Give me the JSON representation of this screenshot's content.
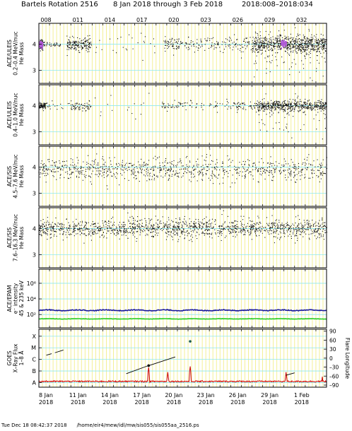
{
  "header": {
    "rotation": "Bartels Rotation 2516",
    "date_range": "8 Jan 2018 through 3 Feb 2018",
    "doy_range": "2018:008–2018:034"
  },
  "footer": {
    "timestamp": "Tue Dec 18 08:42:37 2018",
    "path": "/home/eir4/mew/idl/mw/sis055/sis055aa_2516.ps"
  },
  "chart_data": {
    "type": "scatter",
    "x_range_days": [
      8,
      35
    ],
    "top_ticks": [
      "008",
      "011",
      "014",
      "017",
      "020",
      "023",
      "026",
      "029",
      "032"
    ],
    "top_tick_days": [
      8,
      11,
      14,
      17,
      20,
      23,
      26,
      29,
      32
    ],
    "bottom_ticks": [
      {
        "day": 8,
        "date": "8 Jan",
        "year": "2018"
      },
      {
        "day": 11,
        "date": "11 Jan",
        "year": "2018"
      },
      {
        "day": 14,
        "date": "14 Jan",
        "year": "2018"
      },
      {
        "day": 17,
        "date": "17 Jan",
        "year": "2018"
      },
      {
        "day": 20,
        "date": "20 Jan",
        "year": "2018"
      },
      {
        "day": 23,
        "date": "23 Jan",
        "year": "2018"
      },
      {
        "day": 26,
        "date": "26 Jan",
        "year": "2018"
      },
      {
        "day": 29,
        "date": "29 Jan",
        "year": "2018"
      },
      {
        "day": 32,
        "date": "1 Feb",
        "year": "2018"
      }
    ],
    "panels": [
      {
        "ylabel": [
          "ACE/ULEIS",
          "0.2–0.4 MeV/nuc",
          "He Mass"
        ],
        "y_ticks": [
          "3",
          "4"
        ],
        "y_tick_values": [
          3,
          4
        ],
        "ylim": [
          2.5,
          4.8
        ],
        "clusters": [
          {
            "x0": 8.0,
            "x1": 8.35,
            "y": 4.0,
            "sd": 0.1,
            "n": 90
          },
          {
            "x0": 8.3,
            "x1": 10.0,
            "y": 4.0,
            "sd": 0.05,
            "n": 40
          },
          {
            "x0": 10.6,
            "x1": 12.9,
            "y": 4.0,
            "sd": 0.12,
            "n": 170
          },
          {
            "x0": 13.0,
            "x1": 19.0,
            "y": 4.0,
            "sd": 0.25,
            "n": 25
          },
          {
            "x0": 19.7,
            "x1": 21.2,
            "y": 4.0,
            "sd": 0.14,
            "n": 60
          },
          {
            "x0": 21.2,
            "x1": 25.5,
            "y": 4.0,
            "sd": 0.12,
            "n": 90
          },
          {
            "x0": 25.5,
            "x1": 28.0,
            "y": 4.0,
            "sd": 0.18,
            "n": 60
          },
          {
            "x0": 28.0,
            "x1": 35.0,
            "y": 4.0,
            "sd": 0.16,
            "n": 650
          },
          {
            "x0": 28.0,
            "x1": 35.0,
            "y": 3.8,
            "sd": 0.45,
            "n": 150
          }
        ],
        "highlights": [
          {
            "x0": 8.0,
            "x1": 8.3,
            "y": 4.0
          },
          {
            "x0": 30.7,
            "x1": 31.2,
            "y": 4.05
          }
        ]
      },
      {
        "ylabel": [
          "ACE/ULEIS",
          "0.4–1.0 MeV/nuc",
          "He Mass"
        ],
        "y_ticks": [
          "3",
          "4"
        ],
        "y_tick_values": [
          3,
          4
        ],
        "ylim": [
          2.5,
          4.8
        ],
        "clusters": [
          {
            "x0": 8.0,
            "x1": 8.6,
            "y": 4.0,
            "sd": 0.06,
            "n": 80
          },
          {
            "x0": 8.6,
            "x1": 11.0,
            "y": 4.0,
            "sd": 0.1,
            "n": 20
          },
          {
            "x0": 11.0,
            "x1": 12.9,
            "y": 4.0,
            "sd": 0.08,
            "n": 60
          },
          {
            "x0": 13.0,
            "x1": 19.5,
            "y": 4.0,
            "sd": 0.3,
            "n": 15
          },
          {
            "x0": 19.5,
            "x1": 21.5,
            "y": 4.0,
            "sd": 0.08,
            "n": 40
          },
          {
            "x0": 21.5,
            "x1": 26.5,
            "y": 4.0,
            "sd": 0.12,
            "n": 50
          },
          {
            "x0": 26.5,
            "x1": 28.5,
            "y": 4.0,
            "sd": 0.1,
            "n": 50
          },
          {
            "x0": 28.5,
            "x1": 35.0,
            "y": 4.0,
            "sd": 0.1,
            "n": 500
          },
          {
            "x0": 28.5,
            "x1": 35.0,
            "y": 3.8,
            "sd": 0.4,
            "n": 80
          }
        ],
        "highlights": []
      },
      {
        "ylabel": [
          "ACE/SIS",
          "4.5–7.6 MeV/nuc",
          "He Mass"
        ],
        "y_ticks": [
          "3",
          "4"
        ],
        "y_tick_values": [
          3,
          4
        ],
        "ylim": [
          2.5,
          4.8
        ],
        "clusters": [
          {
            "x0": 8.0,
            "x1": 35.0,
            "y": 3.92,
            "sd": 0.22,
            "n": 900
          }
        ],
        "highlights": []
      },
      {
        "ylabel": [
          "ACE/SIS",
          "7.6–16.3 MeV/nuc",
          "He Mass"
        ],
        "y_ticks": [
          "3",
          "4"
        ],
        "y_tick_values": [
          3,
          4
        ],
        "ylim": [
          2.5,
          4.8
        ],
        "clusters": [
          {
            "x0": 8.0,
            "x1": 35.0,
            "y": 4.02,
            "sd": 0.18,
            "n": 1400
          }
        ],
        "highlights": []
      },
      {
        "ylabel": [
          "ACE/EPAM",
          "e⁻ intensity",
          "45 & 235 keV"
        ],
        "y_ticks": [
          "10²",
          "10⁴",
          "10⁶"
        ],
        "y_tick_values": [
          2,
          4,
          6
        ],
        "ylim": [
          0.3,
          7.8
        ],
        "log": true,
        "lines": [
          {
            "name": "45 keV",
            "color": "#1a1a9c",
            "level": 2.55,
            "amp": 0.1
          },
          {
            "name": "235 keV",
            "color": "#22cc22",
            "level": 1.45,
            "amp": 0.04
          }
        ]
      },
      {
        "ylabel": [
          "GOES",
          "X–Ray Flux",
          "1–8 Å"
        ],
        "y_ticks": [
          "A",
          "B",
          "C",
          "M",
          "X"
        ],
        "y_tick_values": [
          -8,
          -7,
          -6,
          -5,
          -4
        ],
        "ylim": [
          -8.4,
          -3.4
        ],
        "right_label": "Flare Longitude",
        "right_ticks": [
          "90",
          "60",
          "30",
          "0",
          "–30",
          "–60",
          "–90"
        ],
        "right_tick_values": [
          90,
          60,
          30,
          0,
          -30,
          -60,
          -90
        ],
        "flux_base": -7.9,
        "flux_color": "#cc0000",
        "flux_spikes": [
          {
            "x": 18.3,
            "peak": -6.7
          },
          {
            "x": 20.1,
            "peak": -7.1
          },
          {
            "x": 22.2,
            "peak": -6.6
          },
          {
            "x": 31.2,
            "peak": -7.1
          },
          {
            "x": 34.6,
            "peak": -7.5
          }
        ],
        "flare_segments": [
          {
            "x0": 8.7,
            "y0": 10,
            "x1": 9.2,
            "y1": 15
          },
          {
            "x0": 9.5,
            "y0": 18,
            "x1": 10.3,
            "y1": 27
          },
          {
            "x0": 16.2,
            "y0": -52,
            "x1": 18.2,
            "y1": -26
          },
          {
            "x0": 18.4,
            "y0": -24,
            "x1": 20.8,
            "y1": 4
          },
          {
            "x0": 31.2,
            "y0": -57,
            "x1": 32.0,
            "y1": -49
          }
        ],
        "flare_points": [
          {
            "x": 18.3,
            "y": -25
          },
          {
            "x": 22.2,
            "y": 56
          }
        ]
      }
    ]
  }
}
